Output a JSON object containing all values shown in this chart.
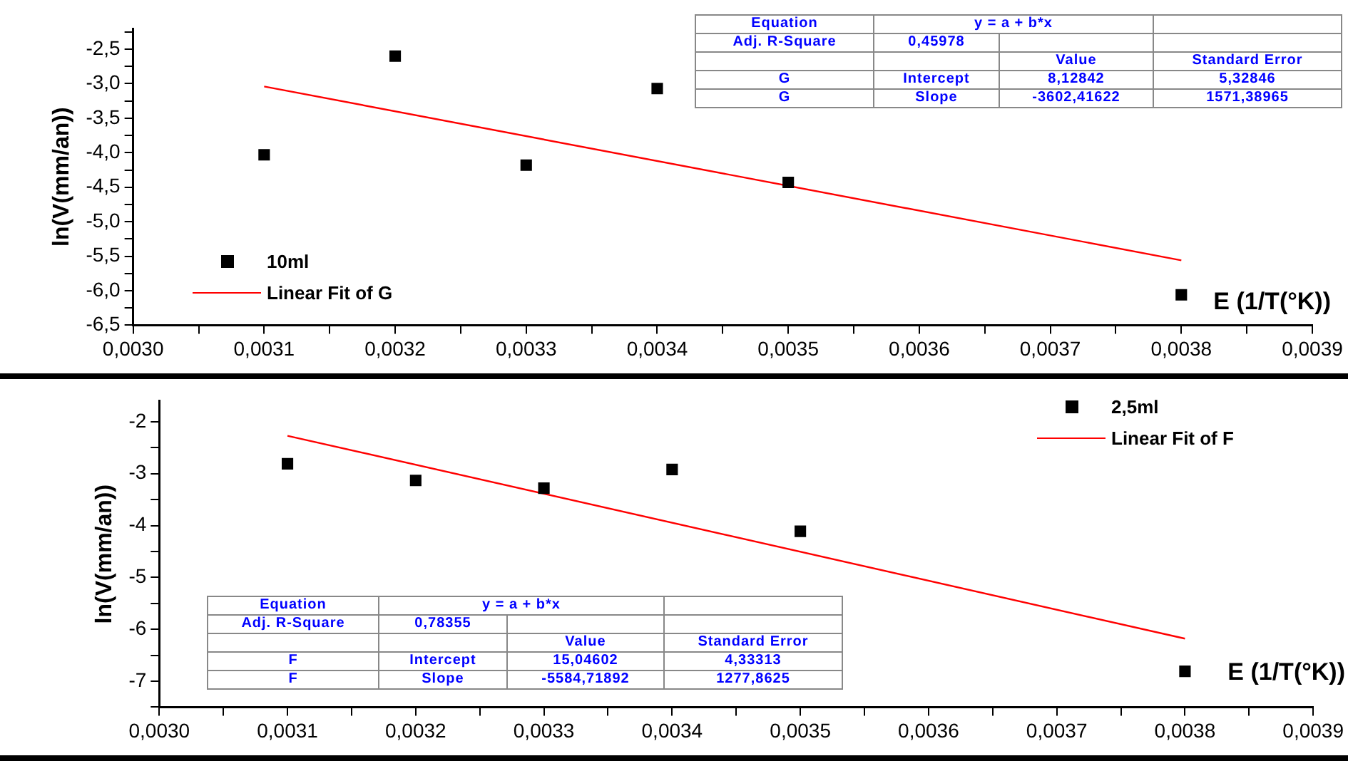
{
  "chart_data": [
    {
      "type": "scatter",
      "xlabel": "E (1/T(°K))",
      "ylabel": "ln(V(mm/an))",
      "legend": "bottom left",
      "marker": "square",
      "xlim": [
        0.003,
        0.0039
      ],
      "xticks": [
        {
          "value": 0.003,
          "label": "0,0030"
        },
        {
          "value": 0.00305,
          "label": null
        },
        {
          "value": 0.0031,
          "label": "0,0031"
        },
        {
          "value": 0.00315,
          "label": null
        },
        {
          "value": 0.0032,
          "label": "0,0032"
        },
        {
          "value": 0.00325,
          "label": null
        },
        {
          "value": 0.0033,
          "label": "0,0033"
        },
        {
          "value": 0.00335,
          "label": null
        },
        {
          "value": 0.0034,
          "label": "0,0034"
        },
        {
          "value": 0.00345,
          "label": null
        },
        {
          "value": 0.0035,
          "label": "0,0035"
        },
        {
          "value": 0.00355,
          "label": null
        },
        {
          "value": 0.0036,
          "label": "0,0036"
        },
        {
          "value": 0.00365,
          "label": null
        },
        {
          "value": 0.0037,
          "label": "0,0037"
        },
        {
          "value": 0.00375,
          "label": null
        },
        {
          "value": 0.0038,
          "label": "0,0038"
        },
        {
          "value": 0.00385,
          "label": null
        },
        {
          "value": 0.0039,
          "label": "0,0039"
        }
      ],
      "ylim": [
        -6.5,
        -2.2
      ],
      "yticks": [
        {
          "value": -6.5,
          "label": "-6,5"
        },
        {
          "value": -6.25,
          "label": null
        },
        {
          "value": -6,
          "label": "-6,0"
        },
        {
          "value": -5.75,
          "label": null
        },
        {
          "value": -5.5,
          "label": "-5,5"
        },
        {
          "value": -5.25,
          "label": null
        },
        {
          "value": -5,
          "label": "-5,0"
        },
        {
          "value": -4.75,
          "label": null
        },
        {
          "value": -4.5,
          "label": "-4,5"
        },
        {
          "value": -4.25,
          "label": null
        },
        {
          "value": -4,
          "label": "-4,0"
        },
        {
          "value": -3.75,
          "label": null
        },
        {
          "value": -3.5,
          "label": "-3,5"
        },
        {
          "value": -3.25,
          "label": null
        },
        {
          "value": -3,
          "label": "-3,0"
        },
        {
          "value": -2.75,
          "label": null
        },
        {
          "value": -2.5,
          "label": "-2,5"
        },
        {
          "value": -2.25,
          "label": null
        }
      ],
      "series": [
        {
          "name": "10ml",
          "color": "#000000",
          "x": [
            0.0031,
            0.0032,
            0.0033,
            0.0034,
            0.0035,
            0.0038
          ],
          "values": [
            -4.03,
            -2.6,
            -4.18,
            -3.07,
            -4.43,
            -6.06
          ]
        },
        {
          "name": "Linear Fit of G",
          "type": "line",
          "color": "#ff0000",
          "marker": "none",
          "x": [
            0.0031,
            0.0038
          ],
          "values": [
            -3.04,
            -5.56
          ]
        }
      ],
      "annotations": [
        "Equation",
        "y = a + b*x",
        "Adj. R-Square",
        "0,45978",
        "Value",
        "Standard Error",
        "G",
        "Intercept",
        "8,12842",
        "5,32846",
        "G",
        "Slope",
        "-3602,41622",
        "1571,38965"
      ]
    },
    {
      "type": "scatter",
      "xlabel": "E (1/T(°K))",
      "ylabel": "ln(V(mm/an))",
      "legend": "top right",
      "marker": "square",
      "xlim": [
        0.003,
        0.0039
      ],
      "xticks": [
        {
          "value": 0.003,
          "label": "0,0030"
        },
        {
          "value": 0.00305,
          "label": null
        },
        {
          "value": 0.0031,
          "label": "0,0031"
        },
        {
          "value": 0.00315,
          "label": null
        },
        {
          "value": 0.0032,
          "label": "0,0032"
        },
        {
          "value": 0.00325,
          "label": null
        },
        {
          "value": 0.0033,
          "label": "0,0033"
        },
        {
          "value": 0.00335,
          "label": null
        },
        {
          "value": 0.0034,
          "label": "0,0034"
        },
        {
          "value": 0.00345,
          "label": null
        },
        {
          "value": 0.0035,
          "label": "0,0035"
        },
        {
          "value": 0.00355,
          "label": null
        },
        {
          "value": 0.0036,
          "label": "0,0036"
        },
        {
          "value": 0.00365,
          "label": null
        },
        {
          "value": 0.0037,
          "label": "0,0037"
        },
        {
          "value": 0.00375,
          "label": null
        },
        {
          "value": 0.0038,
          "label": "0,0038"
        },
        {
          "value": 0.00385,
          "label": null
        },
        {
          "value": 0.0039,
          "label": "0,0039"
        }
      ],
      "ylim": [
        -7.5,
        -1.6
      ],
      "yticks": [
        {
          "value": -7.5,
          "label": null
        },
        {
          "value": -7,
          "label": "-7"
        },
        {
          "value": -6.5,
          "label": null
        },
        {
          "value": -6,
          "label": "-6"
        },
        {
          "value": -5.5,
          "label": null
        },
        {
          "value": -5,
          "label": "-5"
        },
        {
          "value": -4.5,
          "label": null
        },
        {
          "value": -4,
          "label": "-4"
        },
        {
          "value": -3.5,
          "label": null
        },
        {
          "value": -3,
          "label": "-3"
        },
        {
          "value": -2.5,
          "label": null
        },
        {
          "value": -2,
          "label": "-2"
        }
      ],
      "series": [
        {
          "name": "2,5ml",
          "color": "#000000",
          "x": [
            0.0031,
            0.0032,
            0.0033,
            0.0034,
            0.0035,
            0.0038
          ],
          "values": [
            -2.81,
            -3.13,
            -3.28,
            -2.92,
            -4.11,
            -6.81
          ]
        },
        {
          "name": "Linear Fit of F",
          "type": "line",
          "color": "#ff0000",
          "marker": "none",
          "x": [
            0.0031,
            0.0038
          ],
          "values": [
            -2.27,
            -6.18
          ]
        }
      ],
      "annotations": [
        "Equation",
        "y = a + b*x",
        "Adj. R-Square",
        "0,78355",
        "Value",
        "Standard Error",
        "F",
        "Intercept",
        "15,04602",
        "4,33313",
        "F",
        "Slope",
        "-5584,71892",
        "1277,8625"
      ]
    }
  ]
}
